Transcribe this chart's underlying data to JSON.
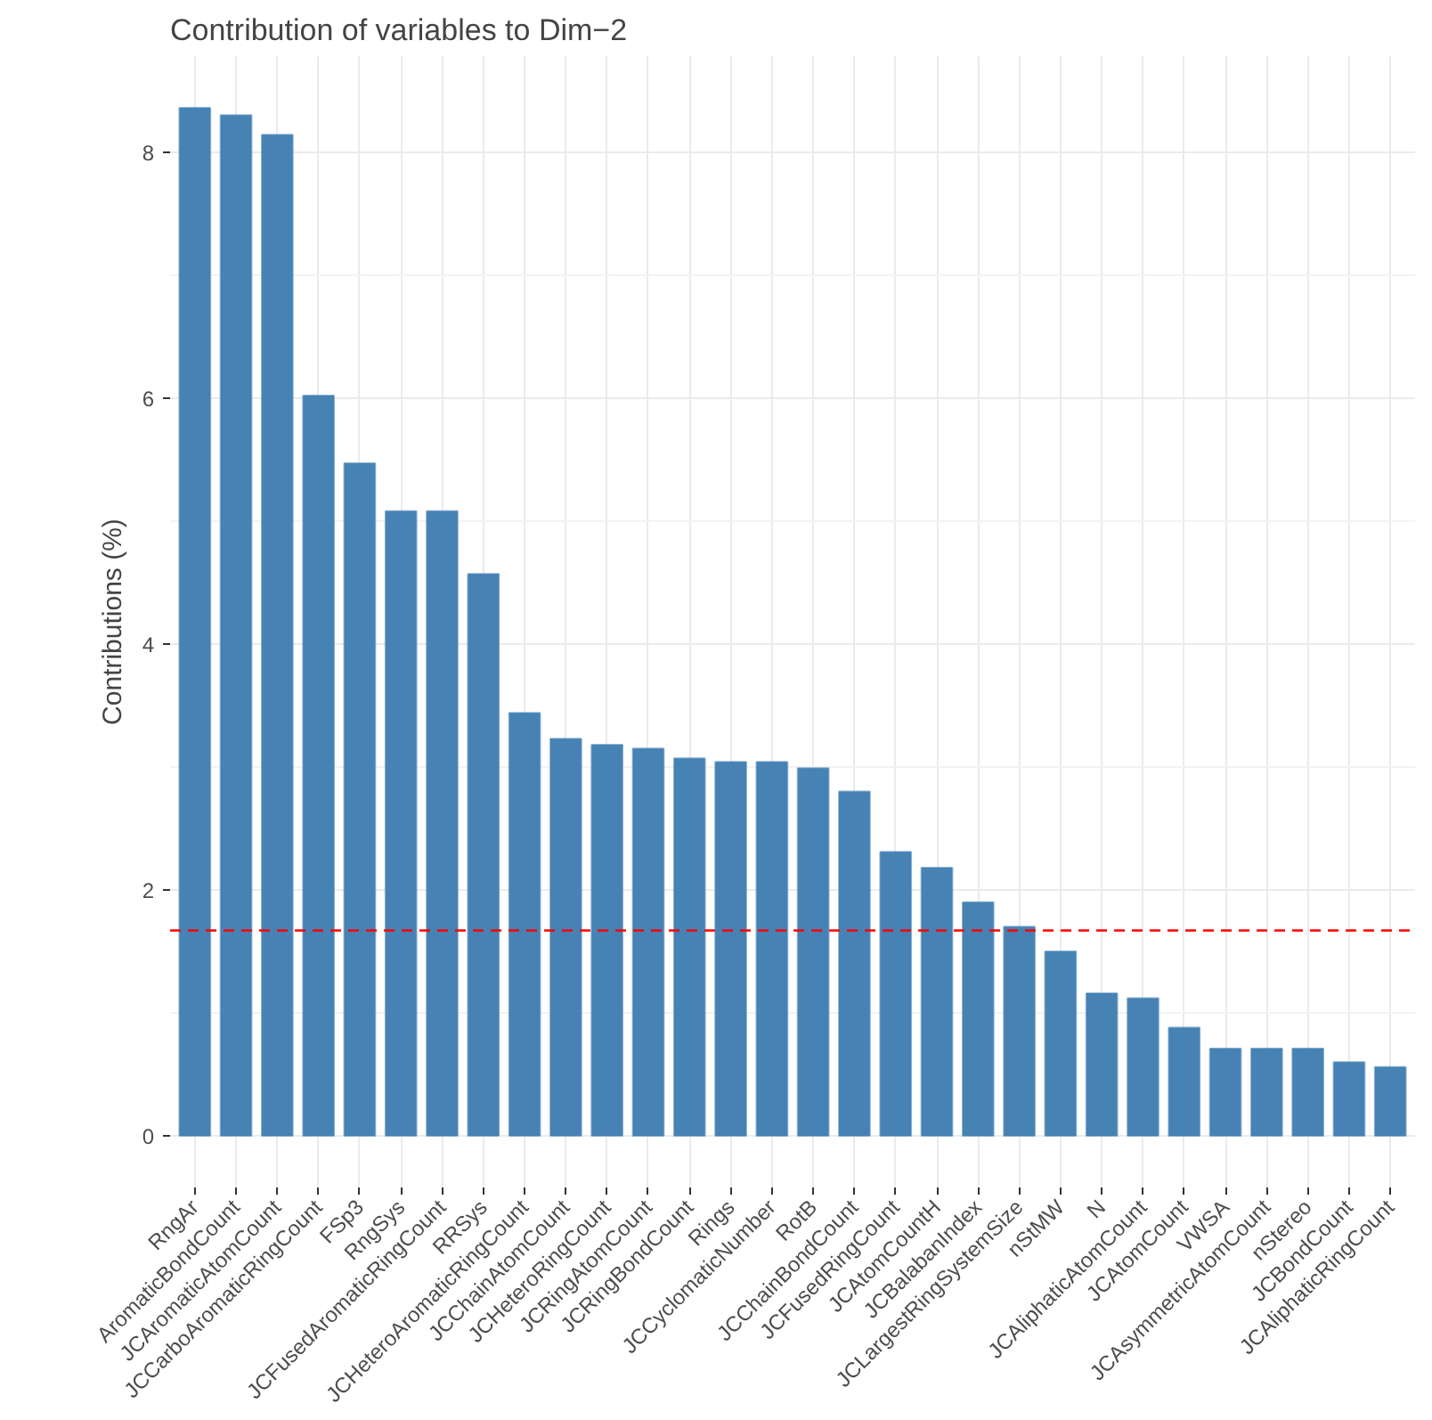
{
  "chart_data": {
    "type": "bar",
    "title": "Contribution of variables to Dim−2",
    "ylabel": "Contributions (%)",
    "categories": [
      "RngAr",
      "AromaticBondCount",
      "JCAromaticAtomCount",
      "JCCarboAromaticRingCount",
      "FSp3",
      "RngSys",
      "JCFusedAromaticRingCount",
      "RRSys",
      "JCHeteroAromaticRingCount",
      "JCChainAtomCount",
      "JCHeteroRingCount",
      "JCRingAtomCount",
      "JCRingBondCount",
      "Rings",
      "JCCyclomaticNumber",
      "RotB",
      "JCChainBondCount",
      "JCFusedRingCount",
      "JCAtomCountH",
      "JCBalabanIndex",
      "JCLargestRingSystemSize",
      "nStMW",
      "N",
      "JCAliphaticAtomCount",
      "JCAtomCount",
      "VWSA",
      "JCAsymmetricAtomCount",
      "nStereo",
      "JCBondCount",
      "JCAliphaticRingCount"
    ],
    "values": [
      8.36,
      8.3,
      8.14,
      6.02,
      5.47,
      5.08,
      5.08,
      4.57,
      3.44,
      3.23,
      3.18,
      3.15,
      3.07,
      3.04,
      3.04,
      2.99,
      2.8,
      2.31,
      2.18,
      1.9,
      1.7,
      1.5,
      1.16,
      1.12,
      0.88,
      0.71,
      0.71,
      0.71,
      0.6,
      0.56
    ],
    "color": "#4682b4",
    "ylim": [
      -0.42,
      8.78
    ],
    "yticks": [
      0,
      2,
      4,
      6,
      8
    ],
    "grid": true,
    "ref_lines": [
      {
        "axis": "y",
        "value": 1.67,
        "color": "#ff0000",
        "line_style": "dashed"
      }
    ]
  }
}
